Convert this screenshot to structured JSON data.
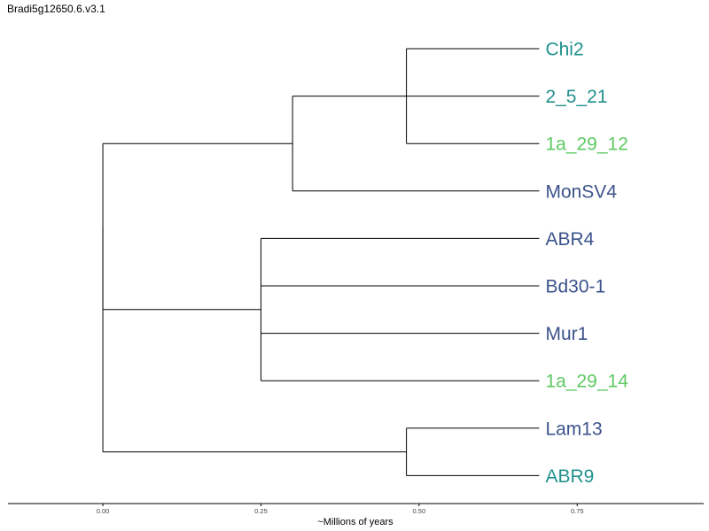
{
  "title": "Bradi5g12650.6.v3.1",
  "colors": {
    "teal": "#21918c",
    "green": "#5ec962",
    "navy": "#3b528b",
    "line": "#000000"
  },
  "chart_data": {
    "type": "dendrogram",
    "xlabel": "~Millions of years",
    "xlim": [
      -0.15,
      0.95
    ],
    "ticks": [
      0.0,
      0.25,
      0.5,
      0.75
    ],
    "tick_labels": [
      "0.00",
      "0.25",
      "0.50",
      "0.75"
    ],
    "leaf_x": 0.69,
    "leaves": [
      {
        "label": "Chi2",
        "color": "#21918c"
      },
      {
        "label": "2_5_21",
        "color": "#21918c"
      },
      {
        "label": "1a_29_12",
        "color": "#5ec962"
      },
      {
        "label": "MonSV4",
        "color": "#3b528b"
      },
      {
        "label": "ABR4",
        "color": "#3b528b"
      },
      {
        "label": "Bd30-1",
        "color": "#3b528b"
      },
      {
        "label": "Mur1",
        "color": "#3b528b"
      },
      {
        "label": "1a_29_14",
        "color": "#5ec962"
      },
      {
        "label": "Lam13",
        "color": "#3b528b"
      },
      {
        "label": "ABR9",
        "color": "#21918c"
      }
    ],
    "tree": {
      "x": 0.0,
      "children": [
        {
          "x": 0.0,
          "children": [
            {
              "x": 0.3,
              "children": [
                {
                  "x": 0.48,
                  "children": [
                    {
                      "leaf": 0
                    },
                    {
                      "leaf": 1
                    },
                    {
                      "leaf": 2
                    }
                  ]
                },
                {
                  "leaf": 3
                }
              ]
            },
            {
              "x": 0.25,
              "children": [
                {
                  "leaf": 4
                },
                {
                  "leaf": 5
                },
                {
                  "leaf": 6
                },
                {
                  "leaf": 7
                }
              ]
            }
          ]
        },
        {
          "x": 0.48,
          "children": [
            {
              "leaf": 8
            },
            {
              "leaf": 9
            }
          ]
        }
      ]
    }
  }
}
